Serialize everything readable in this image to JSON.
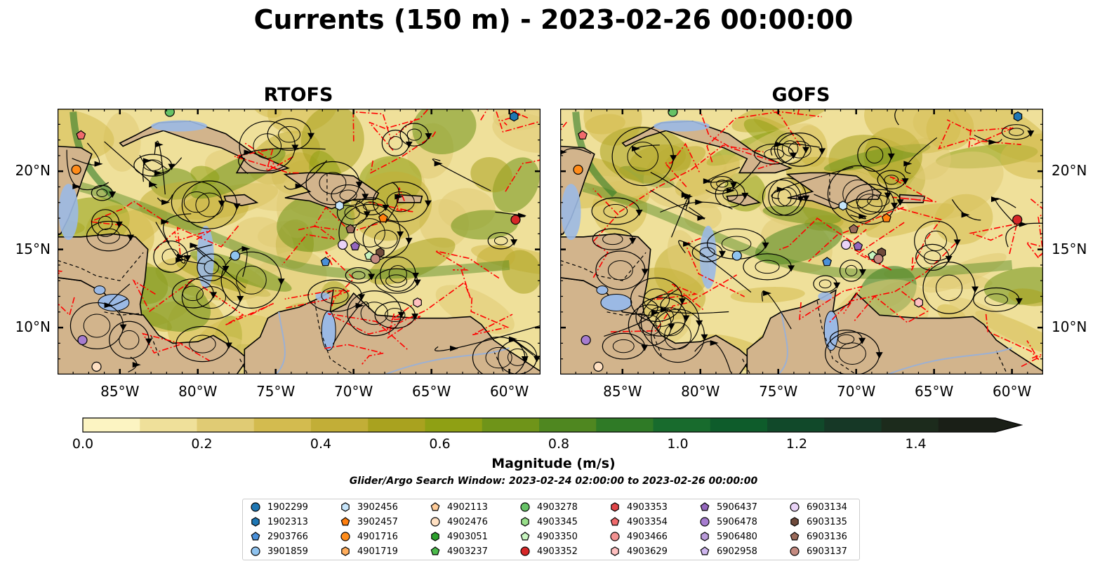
{
  "title": "Currents (150 m) - 2023-02-26 00:00:00",
  "panels": [
    {
      "title": "RTOFS"
    },
    {
      "title": "GOFS"
    }
  ],
  "axes": {
    "x_ticks": [
      "85°W",
      "80°W",
      "75°W",
      "70°W",
      "65°W",
      "60°W"
    ],
    "y_ticks": [
      "20°N",
      "15°N",
      "10°N"
    ]
  },
  "colorbar": {
    "label": "Magnitude (m/s)",
    "ticks": [
      "0.0",
      "0.2",
      "0.4",
      "0.6",
      "0.8",
      "1.0",
      "1.2",
      "1.4"
    ],
    "colors": [
      "#fcf4c2",
      "#efe09a",
      "#e0cb74",
      "#d3bb4f",
      "#c2ae37",
      "#a9a21f",
      "#8fa014",
      "#6f9419",
      "#4f8720",
      "#2f7a26",
      "#186b2d",
      "#0e5c2b",
      "#11492a",
      "#163826",
      "#1c2b1c",
      "#1a1f17"
    ]
  },
  "search_window": "Glider/Argo Search Window: 2023-02-24 02:00:00 to 2023-02-26 00:00:00",
  "legend": [
    {
      "id": "1902299",
      "shape": "circle",
      "color": "#1f77b4"
    },
    {
      "id": "1902313",
      "shape": "hexagon",
      "color": "#1f77b4"
    },
    {
      "id": "2903766",
      "shape": "pentagon",
      "color": "#4a90d9"
    },
    {
      "id": "3901859",
      "shape": "circle",
      "color": "#8fc3ef"
    },
    {
      "id": "3902456",
      "shape": "hexagon",
      "color": "#c6e5fb"
    },
    {
      "id": "3902457",
      "shape": "pentagon",
      "color": "#ff7f0e"
    },
    {
      "id": "4901716",
      "shape": "circle",
      "color": "#ff8c1a"
    },
    {
      "id": "4901719",
      "shape": "hexagon",
      "color": "#ffad5c"
    },
    {
      "id": "4902113",
      "shape": "pentagon",
      "color": "#ffcc99"
    },
    {
      "id": "4902476",
      "shape": "circle",
      "color": "#ffe0c2"
    },
    {
      "id": "4903051",
      "shape": "hexagon",
      "color": "#2ca02c"
    },
    {
      "id": "4903237",
      "shape": "pentagon",
      "color": "#4cbb4c"
    },
    {
      "id": "4903278",
      "shape": "circle",
      "color": "#66c266"
    },
    {
      "id": "4903345",
      "shape": "hexagon",
      "color": "#98df8a"
    },
    {
      "id": "4903350",
      "shape": "pentagon",
      "color": "#c8f5c0"
    },
    {
      "id": "4903352",
      "shape": "circle",
      "color": "#d62728"
    },
    {
      "id": "4903353",
      "shape": "hexagon",
      "color": "#e04548"
    },
    {
      "id": "4903354",
      "shape": "pentagon",
      "color": "#f06a6c"
    },
    {
      "id": "4903466",
      "shape": "circle",
      "color": "#f29191"
    },
    {
      "id": "4903629",
      "shape": "hexagon",
      "color": "#ffc0c0"
    },
    {
      "id": "5906437",
      "shape": "pentagon",
      "color": "#9467bd"
    },
    {
      "id": "5906478",
      "shape": "circle",
      "color": "#a67ccf"
    },
    {
      "id": "5906480",
      "shape": "hexagon",
      "color": "#b99ad9"
    },
    {
      "id": "6902958",
      "shape": "pentagon",
      "color": "#cfb6ef"
    },
    {
      "id": "6903134",
      "shape": "circle",
      "color": "#e9d3f7"
    },
    {
      "id": "6903135",
      "shape": "hexagon",
      "color": "#6f4a3b"
    },
    {
      "id": "6903136",
      "shape": "pentagon",
      "color": "#9a6a5a"
    },
    {
      "id": "6903137",
      "shape": "circle",
      "color": "#c48a80"
    }
  ],
  "floats_on_map": [
    {
      "lon": -87.8,
      "lat": 20.1,
      "color": "#ff8c1a",
      "shape": "circle"
    },
    {
      "lon": -87.5,
      "lat": 22.3,
      "color": "#f06a6c",
      "shape": "pentagon"
    },
    {
      "lon": -81.8,
      "lat": 23.8,
      "color": "#66c266",
      "shape": "circle"
    },
    {
      "lon": -59.7,
      "lat": 23.5,
      "color": "#1f77b4",
      "shape": "hexagon"
    },
    {
      "lon": -77.6,
      "lat": 14.6,
      "color": "#8fc3ef",
      "shape": "circle"
    },
    {
      "lon": -70.9,
      "lat": 17.8,
      "color": "#c6e5fb",
      "shape": "hexagon"
    },
    {
      "lon": -68.1,
      "lat": 17.0,
      "color": "#ff7f0e",
      "shape": "pentagon"
    },
    {
      "lon": -59.6,
      "lat": 16.9,
      "color": "#d62728",
      "shape": "circle"
    },
    {
      "lon": -70.2,
      "lat": 16.3,
      "color": "#9a6a5a",
      "shape": "pentagon"
    },
    {
      "lon": -70.7,
      "lat": 15.3,
      "color": "#e9d3f7",
      "shape": "circle"
    },
    {
      "lon": -69.9,
      "lat": 15.2,
      "color": "#9467bd",
      "shape": "pentagon"
    },
    {
      "lon": -71.8,
      "lat": 14.2,
      "color": "#4a90d9",
      "shape": "pentagon"
    },
    {
      "lon": -69.0,
      "lat": 14.6,
      "color": "#c8f5c0",
      "shape": "pentagon"
    },
    {
      "lon": -68.3,
      "lat": 14.8,
      "color": "#6f4a3b",
      "shape": "hexagon"
    },
    {
      "lon": -68.6,
      "lat": 14.4,
      "color": "#c48a80",
      "shape": "circle"
    },
    {
      "lon": -65.9,
      "lat": 11.6,
      "color": "#ffc0c0",
      "shape": "hexagon"
    },
    {
      "lon": -87.4,
      "lat": 9.2,
      "color": "#a67ccf",
      "shape": "circle"
    },
    {
      "lon": -86.5,
      "lat": 7.5,
      "color": "#ffe0c2",
      "shape": "circle"
    }
  ],
  "colors": {
    "land": "#d2b48c",
    "lakes": "#9bb9e4",
    "eez": "#ff0000"
  }
}
